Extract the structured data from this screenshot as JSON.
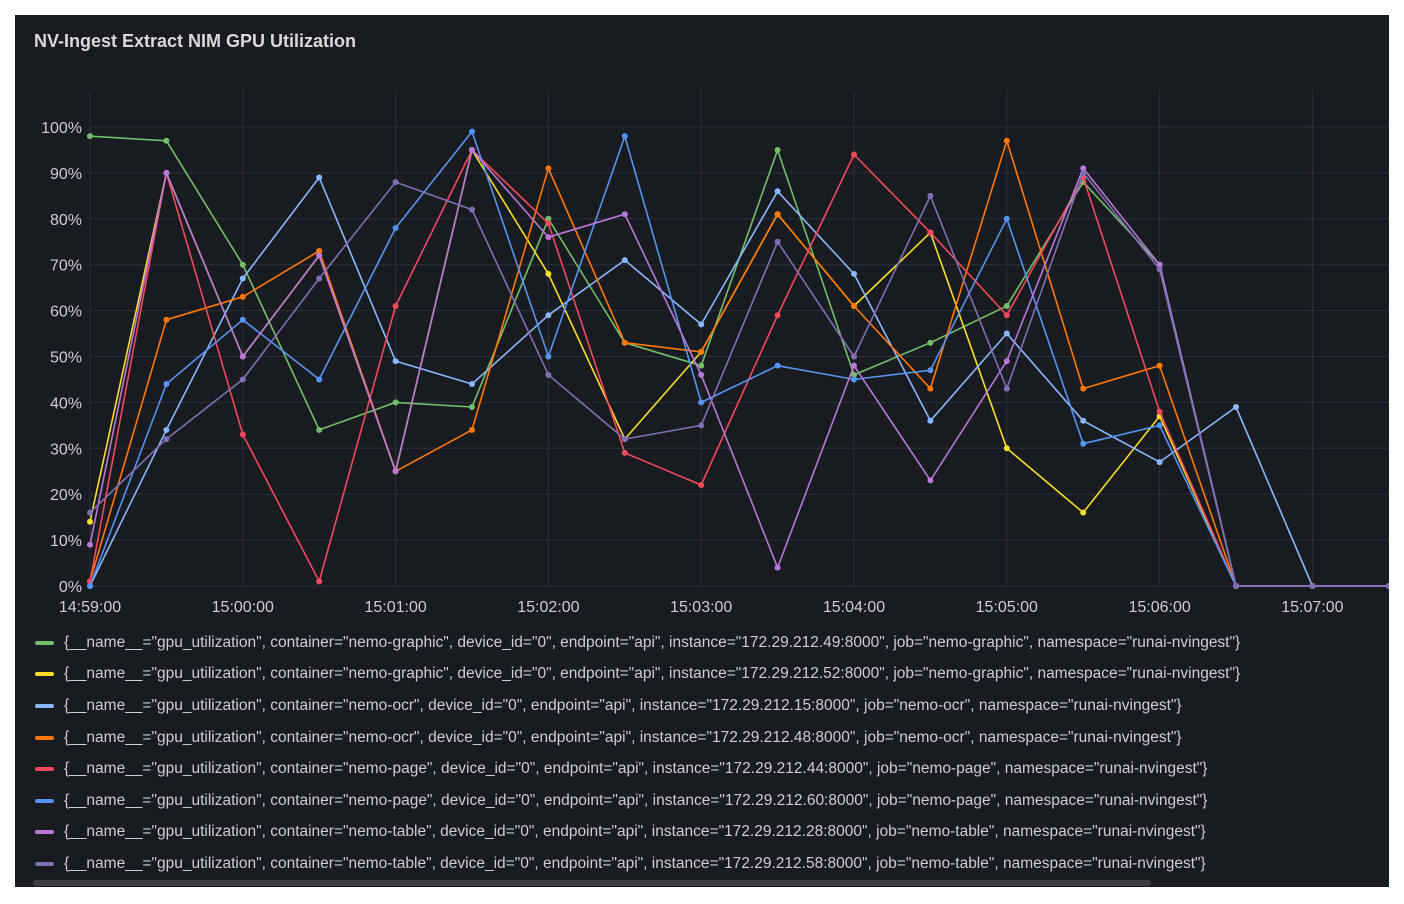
{
  "panel": {
    "title": "NV-Ingest Extract NIM GPU Utilization"
  },
  "chart_data": {
    "type": "line",
    "title": "NV-Ingest Extract NIM GPU Utilization",
    "xlabel": "",
    "ylabel": "",
    "x": [
      "14:59:00",
      "14:59:30",
      "15:00:00",
      "15:00:30",
      "15:01:00",
      "15:01:30",
      "15:02:00",
      "15:02:30",
      "15:03:00",
      "15:03:30",
      "15:04:00",
      "15:04:30",
      "15:05:00",
      "15:05:30",
      "15:06:00",
      "15:06:30",
      "15:07:00",
      "15:07:30"
    ],
    "x_tick_labels": [
      "14:59:00",
      "15:00:00",
      "15:01:00",
      "15:02:00",
      "15:03:00",
      "15:04:00",
      "15:05:00",
      "15:06:00",
      "15:07:00"
    ],
    "y_tick_labels": [
      "0%",
      "10%",
      "20%",
      "30%",
      "40%",
      "50%",
      "60%",
      "70%",
      "80%",
      "90%",
      "100%"
    ],
    "y_unit": "%",
    "ylim": [
      0,
      100
    ],
    "grid": true,
    "legend_position": "bottom",
    "series": [
      {
        "name": "{__name__=\"gpu_utilization\", container=\"nemo-graphic\", device_id=\"0\", endpoint=\"api\", instance=\"172.29.212.49:8000\", job=\"nemo-graphic\", namespace=\"runai-nvingest\"}",
        "color": "#73bf69",
        "values": [
          98,
          97,
          70,
          34,
          40,
          39,
          80,
          53,
          48,
          95,
          46,
          53,
          61,
          88,
          70,
          0,
          0,
          0
        ]
      },
      {
        "name": "{__name__=\"gpu_utilization\", container=\"nemo-graphic\", device_id=\"0\", endpoint=\"api\", instance=\"172.29.212.52:8000\", job=\"nemo-graphic\", namespace=\"runai-nvingest\"}",
        "color": "#fade2a",
        "values": [
          14,
          90,
          50,
          72,
          25,
          95,
          68,
          32,
          51,
          81,
          61,
          77,
          30,
          16,
          37,
          0,
          0,
          0
        ]
      },
      {
        "name": "{__name__=\"gpu_utilization\", container=\"nemo-ocr\", device_id=\"0\", endpoint=\"api\", instance=\"172.29.212.15:8000\", job=\"nemo-ocr\", namespace=\"runai-nvingest\"}",
        "color": "#8ab8ff",
        "values": [
          0,
          34,
          67,
          89,
          49,
          44,
          59,
          71,
          57,
          86,
          68,
          36,
          55,
          36,
          27,
          39,
          0,
          0
        ]
      },
      {
        "name": "{__name__=\"gpu_utilization\", container=\"nemo-ocr\", device_id=\"0\", endpoint=\"api\", instance=\"172.29.212.48:8000\", job=\"nemo-ocr\", namespace=\"runai-nvingest\"}",
        "color": "#ff780a",
        "values": [
          1,
          58,
          63,
          73,
          25,
          34,
          91,
          53,
          51,
          81,
          61,
          43,
          97,
          43,
          48,
          0,
          0,
          0
        ]
      },
      {
        "name": "{__name__=\"gpu_utilization\", container=\"nemo-page\", device_id=\"0\", endpoint=\"api\", instance=\"172.29.212.44:8000\", job=\"nemo-page\", namespace=\"runai-nvingest\"}",
        "color": "#f2495c",
        "values": [
          1,
          90,
          33,
          1,
          61,
          95,
          79,
          29,
          22,
          59,
          94,
          77,
          59,
          89,
          38,
          0,
          0,
          0
        ]
      },
      {
        "name": "{__name__=\"gpu_utilization\", container=\"nemo-page\", device_id=\"0\", endpoint=\"api\", instance=\"172.29.212.60:8000\", job=\"nemo-page\", namespace=\"runai-nvingest\"}",
        "color": "#5794f2",
        "values": [
          0,
          44,
          58,
          45,
          78,
          99,
          50,
          98,
          40,
          48,
          45,
          47,
          80,
          31,
          35,
          0,
          0,
          0
        ]
      },
      {
        "name": "{__name__=\"gpu_utilization\", container=\"nemo-table\", device_id=\"0\", endpoint=\"api\", instance=\"172.29.212.28:8000\", job=\"nemo-table\", namespace=\"runai-nvingest\"}",
        "color": "#b877d9",
        "values": [
          9,
          90,
          50,
          72,
          25,
          95,
          76,
          81,
          46,
          4,
          48,
          23,
          49,
          91,
          70,
          0,
          0,
          0
        ]
      },
      {
        "name": "{__name__=\"gpu_utilization\", container=\"nemo-table\", device_id=\"0\", endpoint=\"api\", instance=\"172.29.212.58:8000\", job=\"nemo-table\", namespace=\"runai-nvingest\"}",
        "color": "#806eb7",
        "values": [
          16,
          32,
          45,
          67,
          88,
          82,
          46,
          32,
          35,
          75,
          50,
          85,
          43,
          90,
          69,
          0,
          0,
          0
        ]
      }
    ]
  }
}
